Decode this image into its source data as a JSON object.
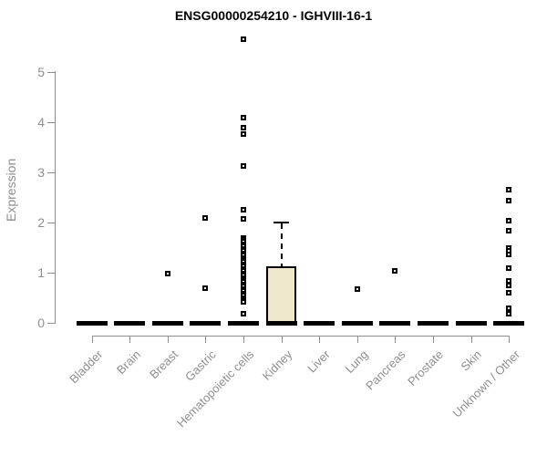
{
  "chart_data": {
    "type": "boxplot",
    "title": "ENSG00000254210 - IGHVIII-16-1",
    "ylabel": "Expression",
    "xlabel": "",
    "ylim": [
      0,
      5.8
    ],
    "yticks": [
      "0",
      "1",
      "2",
      "3",
      "4",
      "5"
    ],
    "grid": false,
    "legend": "none",
    "box_fill_color": "#EDE8CC",
    "axis_color": "#8E8E8E",
    "tick_text_color": "#8E8E8E",
    "marker_color": "#000000",
    "title_color": "#000000",
    "categories": [
      "Bladder",
      "Brain",
      "Breast",
      "Gastric",
      "Hematopoietic cells",
      "Kidney",
      "Liver",
      "Lung",
      "Pancreas",
      "Prostate",
      "Skin",
      "Unknown / Other"
    ],
    "series": [
      {
        "category": "Bladder",
        "q1": 0,
        "median": 0,
        "q3": 0,
        "whisker_low": 0,
        "whisker_high": 0,
        "outliers": []
      },
      {
        "category": "Brain",
        "q1": 0,
        "median": 0,
        "q3": 0,
        "whisker_low": 0,
        "whisker_high": 0,
        "outliers": []
      },
      {
        "category": "Breast",
        "q1": 0,
        "median": 0,
        "q3": 0,
        "whisker_low": 0,
        "whisker_high": 0,
        "outliers": [
          0.98
        ]
      },
      {
        "category": "Gastric",
        "q1": 0,
        "median": 0,
        "q3": 0,
        "whisker_low": 0,
        "whisker_high": 0,
        "outliers": [
          2.09,
          0.69
        ]
      },
      {
        "category": "Hematopoietic cells",
        "q1": 0,
        "median": 0,
        "q3": 0,
        "whisker_low": 0,
        "whisker_high": 0,
        "outliers": [
          5.66,
          4.1,
          3.9,
          3.77,
          3.13,
          2.25,
          2.07,
          1.7,
          1.66,
          1.61,
          1.57,
          1.52,
          1.48,
          1.43,
          1.39,
          1.34,
          1.3,
          1.25,
          1.21,
          1.16,
          1.12,
          1.08,
          1.03,
          0.99,
          0.94,
          0.9,
          0.85,
          0.81,
          0.76,
          0.72,
          0.68,
          0.63,
          0.59,
          0.54,
          0.5,
          0.45,
          0.41,
          0.18
        ]
      },
      {
        "category": "Kidney",
        "q1": 0,
        "median": 0,
        "q3": 1.13,
        "whisker_low": 0,
        "whisker_high": 2.01,
        "outliers": []
      },
      {
        "category": "Liver",
        "q1": 0,
        "median": 0,
        "q3": 0,
        "whisker_low": 0,
        "whisker_high": 0,
        "outliers": []
      },
      {
        "category": "Lung",
        "q1": 0,
        "median": 0,
        "q3": 0,
        "whisker_low": 0,
        "whisker_high": 0,
        "outliers": [
          0.67
        ]
      },
      {
        "category": "Pancreas",
        "q1": 0,
        "median": 0,
        "q3": 0,
        "whisker_low": 0,
        "whisker_high": 0,
        "outliers": [
          1.03
        ]
      },
      {
        "category": "Prostate",
        "q1": 0,
        "median": 0,
        "q3": 0,
        "whisker_low": 0,
        "whisker_high": 0,
        "outliers": []
      },
      {
        "category": "Skin",
        "q1": 0,
        "median": 0,
        "q3": 0,
        "whisker_low": 0,
        "whisker_high": 0,
        "outliers": []
      },
      {
        "category": "Unknown / Other",
        "q1": 0,
        "median": 0,
        "q3": 0,
        "whisker_low": 0,
        "whisker_high": 0,
        "outliers": [
          2.65,
          2.44,
          2.04,
          1.84,
          1.5,
          1.43,
          1.36,
          1.09,
          0.84,
          0.74,
          0.6,
          0.29,
          0.18
        ]
      }
    ]
  }
}
